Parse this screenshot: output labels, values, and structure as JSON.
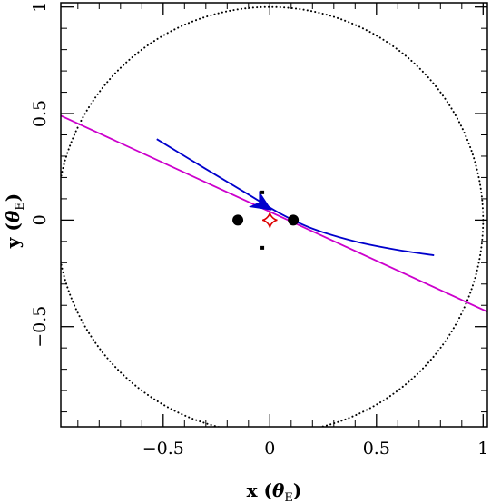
{
  "chart_data": {
    "type": "scatter",
    "title": "",
    "xlabel": {
      "main": "x",
      "symbol": "θ",
      "subscript": "E"
    },
    "ylabel": {
      "main": "y",
      "symbol": "θ",
      "subscript": "E"
    },
    "xlim": [
      -0.98,
      1.02
    ],
    "ylim": [
      -0.97,
      1.02
    ],
    "xticks": [
      {
        "value": -0.5,
        "label": "−0.5"
      },
      {
        "value": 0,
        "label": "0"
      },
      {
        "value": 0.5,
        "label": "0.5"
      },
      {
        "value": 1,
        "label": "1"
      }
    ],
    "yticks": [
      {
        "value": -0.5,
        "label": "−0.5"
      },
      {
        "value": 0,
        "label": "0"
      },
      {
        "value": 0.5,
        "label": "0.5"
      },
      {
        "value": 1,
        "label": "1"
      }
    ],
    "xminor": [
      -0.9,
      -0.8,
      -0.7,
      -0.6,
      -0.4,
      -0.3,
      -0.2,
      -0.1,
      0.1,
      0.2,
      0.3,
      0.4,
      0.6,
      0.7,
      0.8,
      0.9
    ],
    "yminor": [
      -0.9,
      -0.8,
      -0.7,
      -0.6,
      -0.4,
      -0.3,
      -0.2,
      -0.1,
      0.1,
      0.2,
      0.3,
      0.4,
      0.6,
      0.7,
      0.8,
      0.9
    ],
    "einstein_ring": {
      "center": [
        0,
        0
      ],
      "radius": 1.0,
      "color": "#000000",
      "style": "dotted"
    },
    "lenses": [
      {
        "x": -0.15,
        "y": 0.0
      },
      {
        "x": 0.11,
        "y": 0.0
      }
    ],
    "small_markers": [
      {
        "x": -0.035,
        "y": 0.13
      },
      {
        "x": -0.035,
        "y": -0.13
      }
    ],
    "caustic": {
      "center": [
        0.0,
        0.0
      ],
      "size": 0.035,
      "color": "#dd0000"
    },
    "source_trajectory": {
      "color": "#cc00cc",
      "points": [
        [
          -0.98,
          0.49
        ],
        [
          1.02,
          -0.43
        ]
      ]
    },
    "image_trajectory": {
      "color": "#0000cc",
      "points": [
        [
          -0.53,
          0.38
        ],
        [
          -0.3,
          0.24
        ],
        [
          -0.1,
          0.12
        ],
        [
          0.05,
          0.03
        ],
        [
          0.2,
          -0.04
        ],
        [
          0.4,
          -0.1
        ],
        [
          0.6,
          -0.14
        ],
        [
          0.77,
          -0.165
        ]
      ],
      "arrow": {
        "from": [
          -0.06,
          0.09
        ],
        "to": [
          0.01,
          0.045
        ]
      }
    },
    "grid": false,
    "legend": "none"
  }
}
